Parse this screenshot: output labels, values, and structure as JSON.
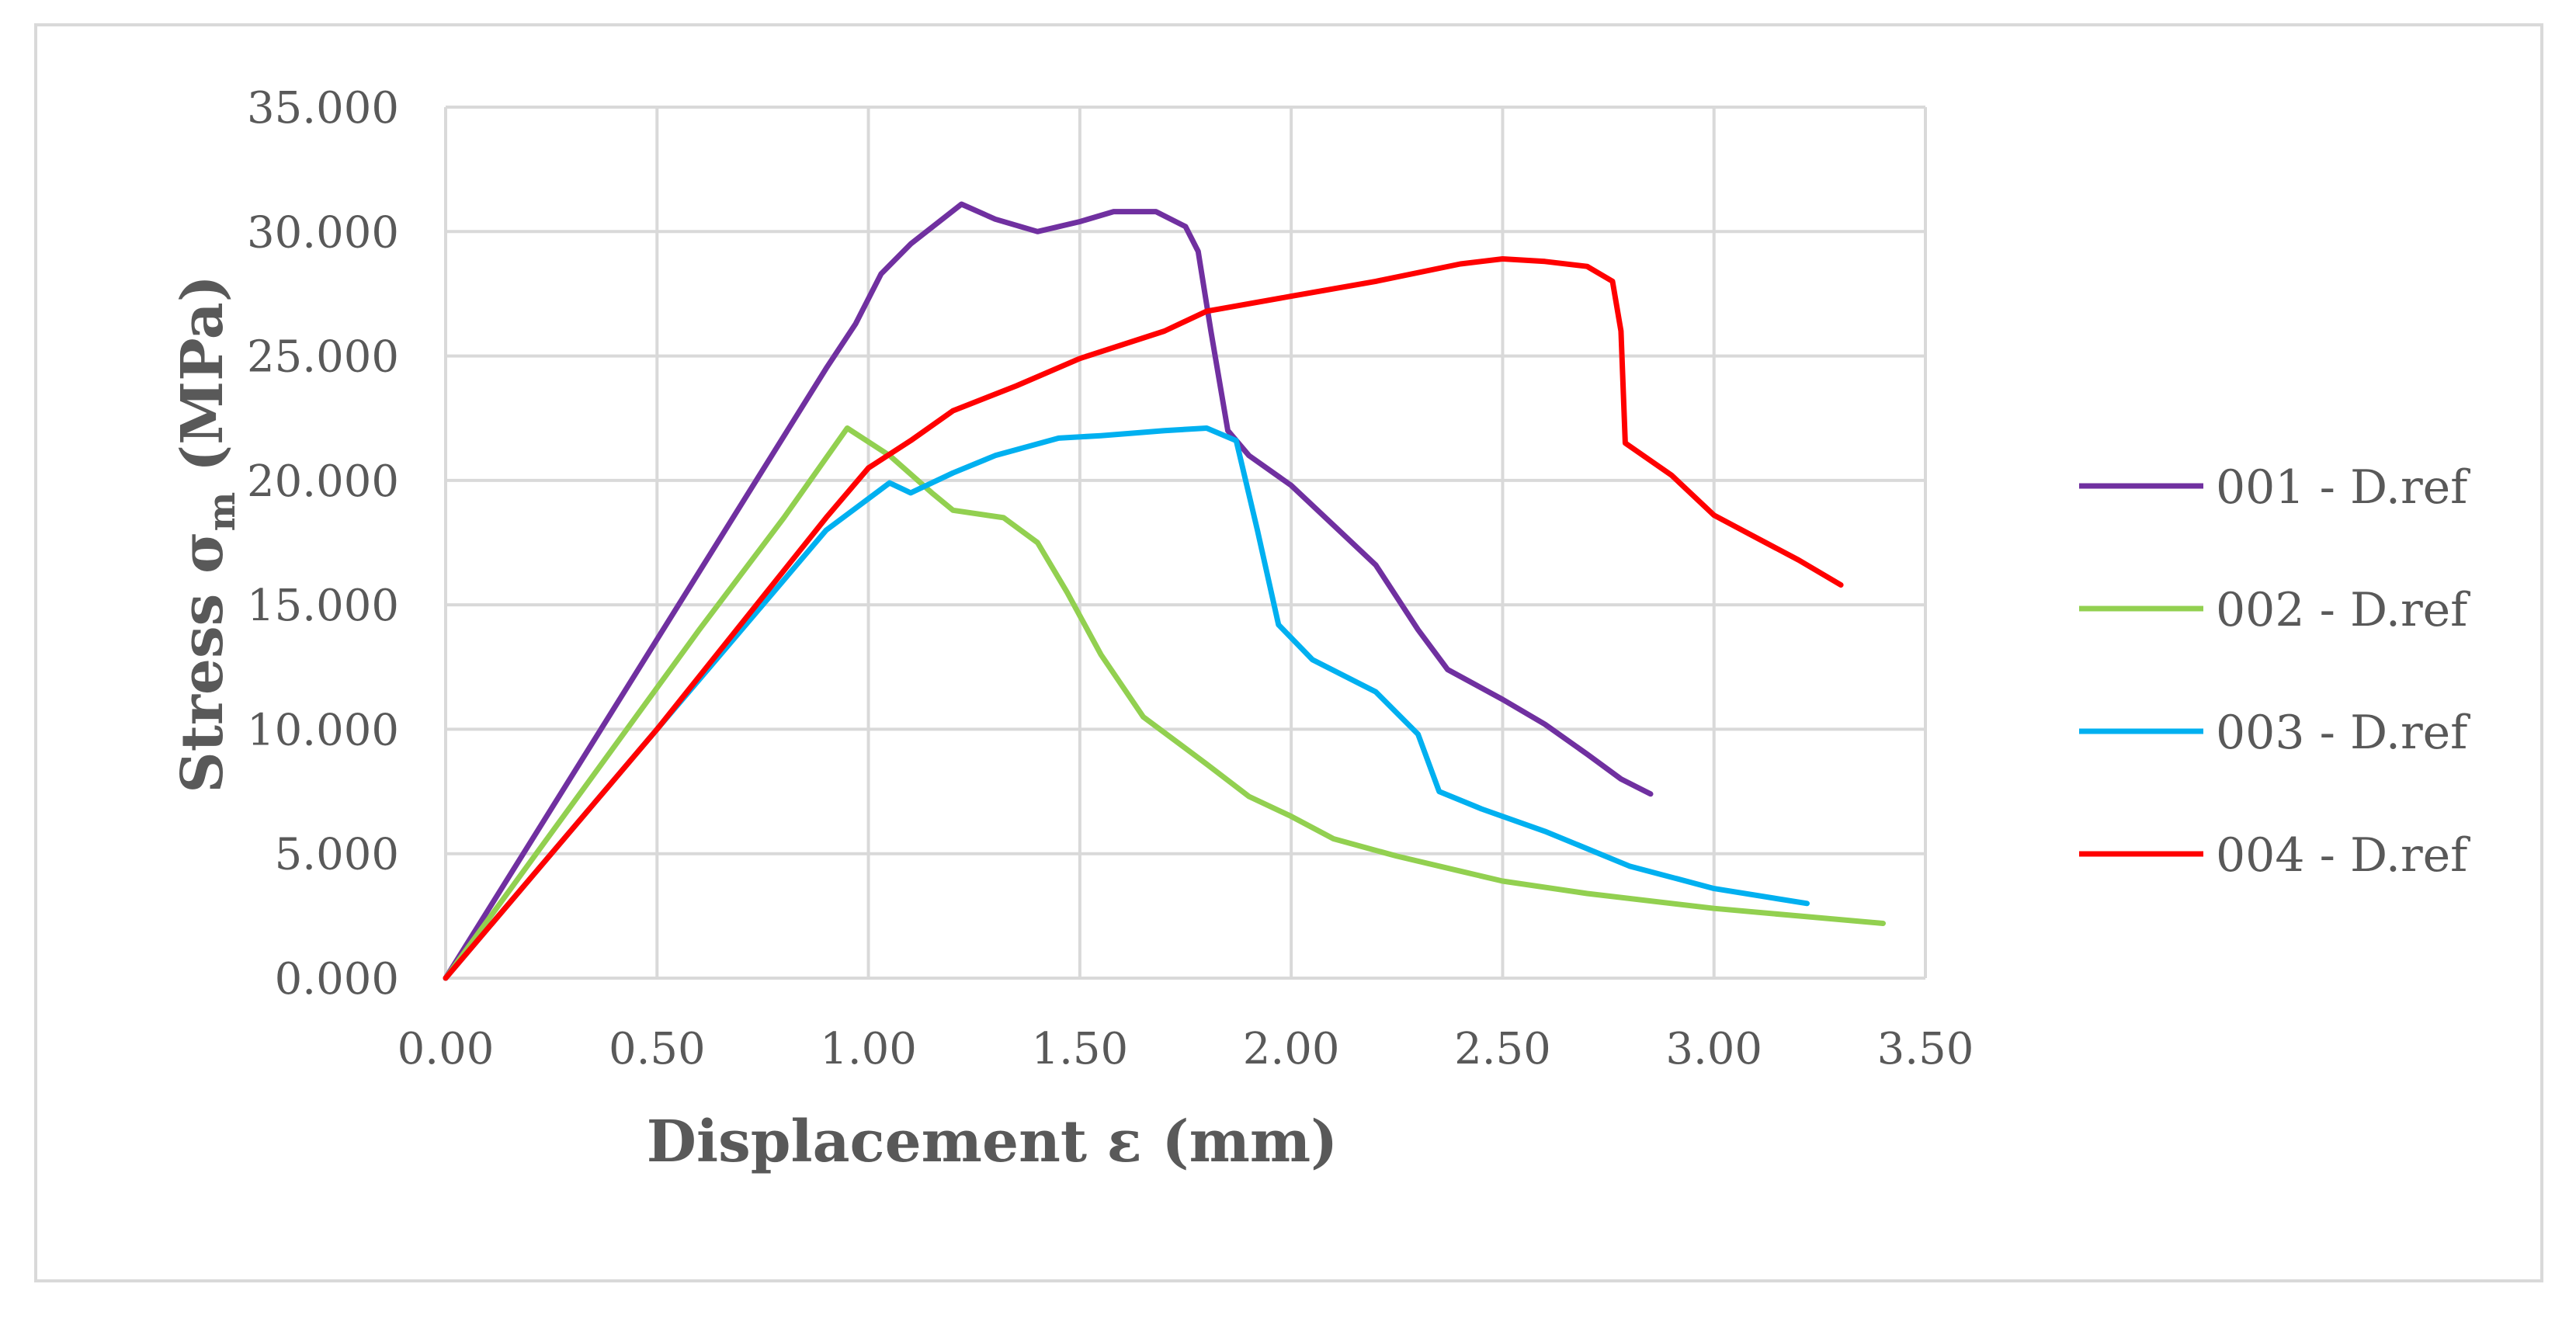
{
  "chart_data": {
    "type": "line",
    "title": "",
    "xlabel": "Displacement ε (mm)",
    "ylabel": {
      "prefix": "Stress σ",
      "subscript": "m",
      "suffix": " (MPa)"
    },
    "xlim": [
      0,
      3.5
    ],
    "ylim": [
      0,
      35
    ],
    "x_ticks": [
      0,
      0.5,
      1.0,
      1.5,
      2.0,
      2.5,
      3.0,
      3.5
    ],
    "x_tick_labels": [
      "0.00",
      "0.50",
      "1.00",
      "1.50",
      "2.00",
      "2.50",
      "3.00",
      "3.50"
    ],
    "y_ticks": [
      0,
      5,
      10,
      15,
      20,
      25,
      30,
      35
    ],
    "y_tick_labels": [
      "0.000",
      "5.000",
      "10.000",
      "15.000",
      "20.000",
      "25.000",
      "30.000",
      "35.000"
    ],
    "grid": true,
    "legend_position": "right",
    "series": [
      {
        "name": "001 - D.ref",
        "color": "#7030a0",
        "points": [
          [
            0,
            0
          ],
          [
            0.9,
            24.5
          ],
          [
            0.97,
            26.3
          ],
          [
            1.03,
            28.3
          ],
          [
            1.1,
            29.5
          ],
          [
            1.22,
            31.1
          ],
          [
            1.3,
            30.5
          ],
          [
            1.4,
            30.0
          ],
          [
            1.5,
            30.4
          ],
          [
            1.58,
            30.8
          ],
          [
            1.68,
            30.8
          ],
          [
            1.75,
            30.2
          ],
          [
            1.78,
            29.2
          ],
          [
            1.81,
            26.0
          ],
          [
            1.85,
            22.0
          ],
          [
            1.9,
            21.0
          ],
          [
            2.0,
            19.8
          ],
          [
            2.1,
            18.2
          ],
          [
            2.2,
            16.6
          ],
          [
            2.3,
            14.0
          ],
          [
            2.37,
            12.4
          ],
          [
            2.5,
            11.2
          ],
          [
            2.6,
            10.2
          ],
          [
            2.7,
            9.0
          ],
          [
            2.78,
            8.0
          ],
          [
            2.85,
            7.4
          ]
        ]
      },
      {
        "name": "002 - D.ref",
        "color": "#92d050",
        "points": [
          [
            0,
            0
          ],
          [
            0.3,
            7.0
          ],
          [
            0.6,
            14.0
          ],
          [
            0.8,
            18.5
          ],
          [
            0.95,
            22.1
          ],
          [
            1.05,
            21.0
          ],
          [
            1.15,
            19.5
          ],
          [
            1.2,
            18.8
          ],
          [
            1.32,
            18.5
          ],
          [
            1.4,
            17.5
          ],
          [
            1.47,
            15.5
          ],
          [
            1.55,
            13.0
          ],
          [
            1.65,
            10.5
          ],
          [
            1.8,
            8.6
          ],
          [
            1.9,
            7.3
          ],
          [
            2.0,
            6.5
          ],
          [
            2.1,
            5.6
          ],
          [
            2.25,
            4.9
          ],
          [
            2.4,
            4.3
          ],
          [
            2.5,
            3.9
          ],
          [
            2.7,
            3.4
          ],
          [
            3.0,
            2.8
          ],
          [
            3.2,
            2.5
          ],
          [
            3.4,
            2.2
          ]
        ]
      },
      {
        "name": "003 - D.ref",
        "color": "#00b0f0",
        "points": [
          [
            0,
            0
          ],
          [
            0.5,
            10.0
          ],
          [
            0.9,
            18.0
          ],
          [
            1.05,
            19.9
          ],
          [
            1.1,
            19.5
          ],
          [
            1.2,
            20.3
          ],
          [
            1.3,
            21.0
          ],
          [
            1.45,
            21.7
          ],
          [
            1.55,
            21.8
          ],
          [
            1.7,
            22.0
          ],
          [
            1.8,
            22.1
          ],
          [
            1.87,
            21.6
          ],
          [
            1.92,
            18.0
          ],
          [
            1.97,
            14.2
          ],
          [
            2.05,
            12.8
          ],
          [
            2.2,
            11.5
          ],
          [
            2.3,
            9.8
          ],
          [
            2.35,
            7.5
          ],
          [
            2.45,
            6.8
          ],
          [
            2.6,
            5.9
          ],
          [
            2.8,
            4.5
          ],
          [
            3.0,
            3.6
          ],
          [
            3.22,
            3.0
          ]
        ]
      },
      {
        "name": "004 - D.ref",
        "color": "#ff0000",
        "points": [
          [
            0,
            0
          ],
          [
            0.5,
            10.0
          ],
          [
            0.9,
            18.5
          ],
          [
            1.0,
            20.5
          ],
          [
            1.1,
            21.6
          ],
          [
            1.2,
            22.8
          ],
          [
            1.35,
            23.8
          ],
          [
            1.5,
            24.9
          ],
          [
            1.7,
            26.0
          ],
          [
            1.8,
            26.8
          ],
          [
            2.0,
            27.4
          ],
          [
            2.2,
            28.0
          ],
          [
            2.4,
            28.7
          ],
          [
            2.5,
            28.9
          ],
          [
            2.6,
            28.8
          ],
          [
            2.7,
            28.6
          ],
          [
            2.76,
            28.0
          ],
          [
            2.78,
            26.0
          ],
          [
            2.79,
            21.5
          ],
          [
            2.9,
            20.2
          ],
          [
            3.0,
            18.6
          ],
          [
            3.1,
            17.7
          ],
          [
            3.2,
            16.8
          ],
          [
            3.3,
            15.8
          ]
        ]
      }
    ]
  }
}
